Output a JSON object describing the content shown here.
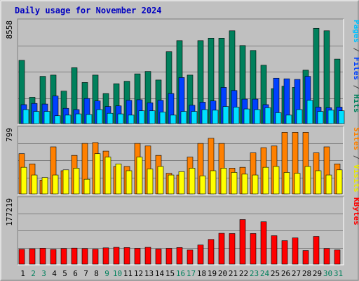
{
  "chart_data": {
    "type": "bar",
    "title": "Daily usage for November 2024",
    "days": [
      "1",
      "2",
      "3",
      "4",
      "5",
      "6",
      "7",
      "8",
      "9",
      "10",
      "11",
      "12",
      "13",
      "14",
      "15",
      "16",
      "17",
      "18",
      "19",
      "20",
      "21",
      "22",
      "23",
      "24",
      "25",
      "26",
      "27",
      "28",
      "29",
      "30",
      "31"
    ],
    "weekend_days": [
      "2",
      "3",
      "9",
      "10",
      "16",
      "17",
      "23",
      "24",
      "30",
      "31"
    ],
    "panels": [
      {
        "id": "hits",
        "max_label": "8558",
        "ymax": 8558,
        "gridlines": [
          2139,
          4279,
          6418
        ],
        "series": [
          {
            "name": "Hits",
            "color": "#00805c",
            "values": [
              5200,
              2200,
              3900,
              4000,
              2700,
              4600,
              3400,
              4000,
              2500,
              3300,
              3500,
              4100,
              4300,
              3600,
              5900,
              6800,
              4000,
              6800,
              7000,
              7000,
              7600,
              6400,
              6000,
              4800,
              2900,
              3100,
              3000,
              4400,
              7800,
              7600,
              5300
            ]
          },
          {
            "name": "Files",
            "color": "#0040ff",
            "values": [
              1600,
              1700,
              1650,
              2300,
              1300,
              1200,
              2100,
              1900,
              1450,
              1500,
              1950,
              2000,
              1750,
              1950,
              2500,
              3800,
              1550,
              1800,
              1900,
              3000,
              2750,
              2050,
              2050,
              1600,
              3750,
              3700,
              3650,
              3900,
              1400,
              1350,
              1400
            ]
          },
          {
            "name": "Pages",
            "color": "#00e0ff",
            "values": [
              1200,
              1050,
              1050,
              700,
              750,
              850,
              800,
              1200,
              900,
              850,
              750,
              1100,
              1100,
              1000,
              750,
              1050,
              1050,
              1200,
              1150,
              1450,
              1400,
              1250,
              1200,
              1350,
              950,
              750,
              1200,
              1950,
              1050,
              1150,
              1100
            ]
          }
        ],
        "axis_label_parts": [
          {
            "text": "Pages",
            "color": "#00c0ff"
          },
          {
            "text": " / ",
            "color": "#444444"
          },
          {
            "text": "Files",
            "color": "#0040ff"
          },
          {
            "text": " / ",
            "color": "#444444"
          },
          {
            "text": "Hits",
            "color": "#00805c"
          }
        ]
      },
      {
        "id": "visits",
        "max_label": "799",
        "ymax": 799,
        "gridlines": [
          200,
          400,
          600
        ],
        "series": [
          {
            "name": "Sites",
            "color": "#ff8000",
            "values": [
              480,
              360,
              170,
              560,
              280,
              460,
              600,
              610,
              510,
              330,
              330,
              600,
              570,
              460,
              250,
              230,
              440,
              600,
              660,
              600,
              310,
              320,
              490,
              550,
              570,
              730,
              730,
              730,
              490,
              560,
              360
            ]
          },
          {
            "name": "Visits",
            "color": "#ffff00",
            "values": [
              320,
              230,
              200,
              230,
              290,
              310,
              180,
              480,
              440,
              360,
              280,
              440,
              300,
              330,
              230,
              270,
              310,
              220,
              280,
              310,
              260,
              240,
              230,
              320,
              330,
              260,
              250,
              330,
              280,
              230,
              290
            ]
          }
        ],
        "axis_label_parts": [
          {
            "text": "Sites",
            "color": "#ff8000"
          },
          {
            "text": " / ",
            "color": "#444444"
          },
          {
            "text": "Visits",
            "color": "#e8e800"
          }
        ]
      },
      {
        "id": "kbytes",
        "max_label": "177219",
        "ymax": 177219,
        "gridlines": [
          44305,
          88610,
          132914
        ],
        "series": [
          {
            "name": "KBytes",
            "color": "#ff0000",
            "values": [
              40500,
              41800,
              43100,
              40200,
              42500,
              43500,
              42400,
              40800,
              44200,
              45600,
              45000,
              42900,
              45600,
              41200,
              42800,
              45000,
              38600,
              51600,
              66100,
              82100,
              81400,
              117800,
              81500,
              112000,
              75800,
              62900,
              70100,
              37300,
              73900,
              42500,
              38700
            ]
          }
        ],
        "axis_label_parts": [
          {
            "text": "KBytes",
            "color": "#ff0000"
          }
        ]
      }
    ],
    "colors": {
      "background": "#c0c0c0",
      "title": "#0000c0",
      "weekday": "#000000",
      "weekend": "#00805c"
    }
  }
}
